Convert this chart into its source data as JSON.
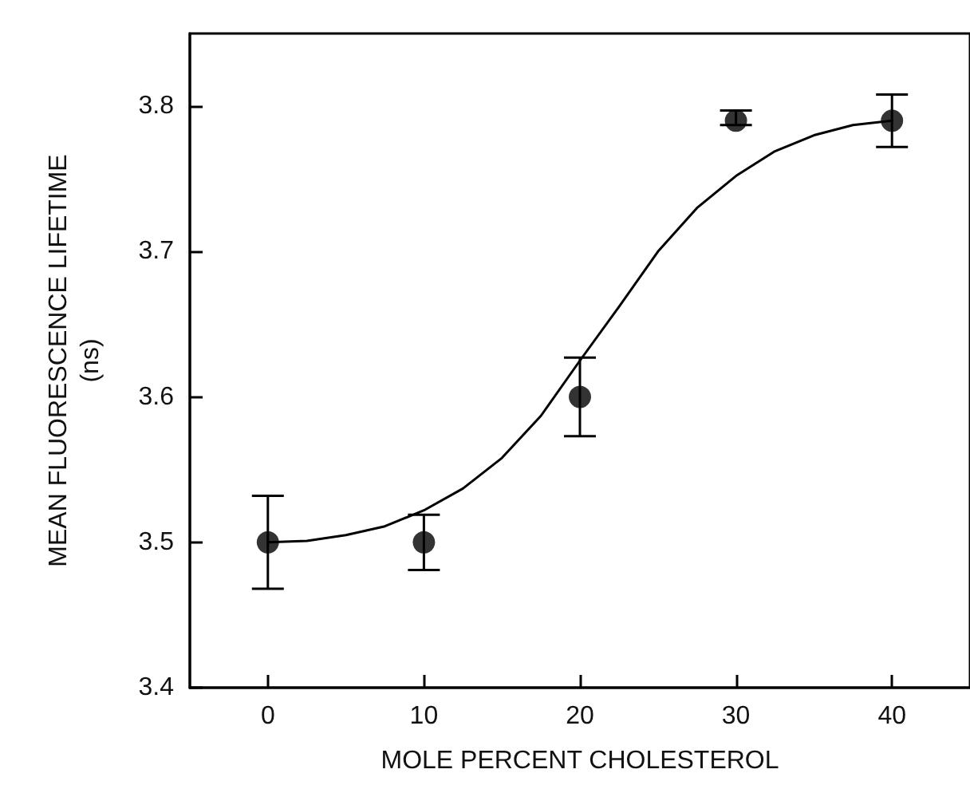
{
  "chart_data": {
    "type": "scatter",
    "xlabel": "MOLE PERCENT CHOLESTEROL",
    "ylabel": "MEAN FLUORESCENCE LIFETIME\n(ns)",
    "xlim": [
      -5,
      45
    ],
    "xticks": [
      0,
      10,
      20,
      30,
      40
    ],
    "ylim": [
      3.4,
      3.85
    ],
    "yticks": [
      3.4,
      3.5,
      3.6,
      3.7,
      3.8
    ],
    "marker": "circle",
    "grid": false,
    "series": [
      {
        "color": "#000000",
        "x": [
          0,
          10,
          20,
          30,
          40
        ],
        "values": [
          3.5,
          3.5,
          3.6,
          3.79,
          3.79
        ],
        "errors": [
          [
            3.468,
            3.532
          ],
          [
            3.481,
            3.519
          ],
          [
            3.573,
            3.627
          ],
          [
            3.787,
            3.797
          ],
          [
            3.772,
            3.808
          ]
        ]
      },
      {
        "type": "line",
        "color": "#000000",
        "marker": "none",
        "x": [
          0,
          2.5,
          5,
          7.5,
          10,
          12.5,
          15,
          17.5,
          20,
          22.5,
          25,
          27.5,
          30,
          32.5,
          35,
          37.5,
          40
        ],
        "values": [
          3.5,
          3.501,
          3.505,
          3.511,
          3.522,
          3.537,
          3.558,
          3.587,
          3.625,
          3.662,
          3.7,
          3.73,
          3.752,
          3.769,
          3.78,
          3.787,
          3.79
        ]
      }
    ]
  }
}
